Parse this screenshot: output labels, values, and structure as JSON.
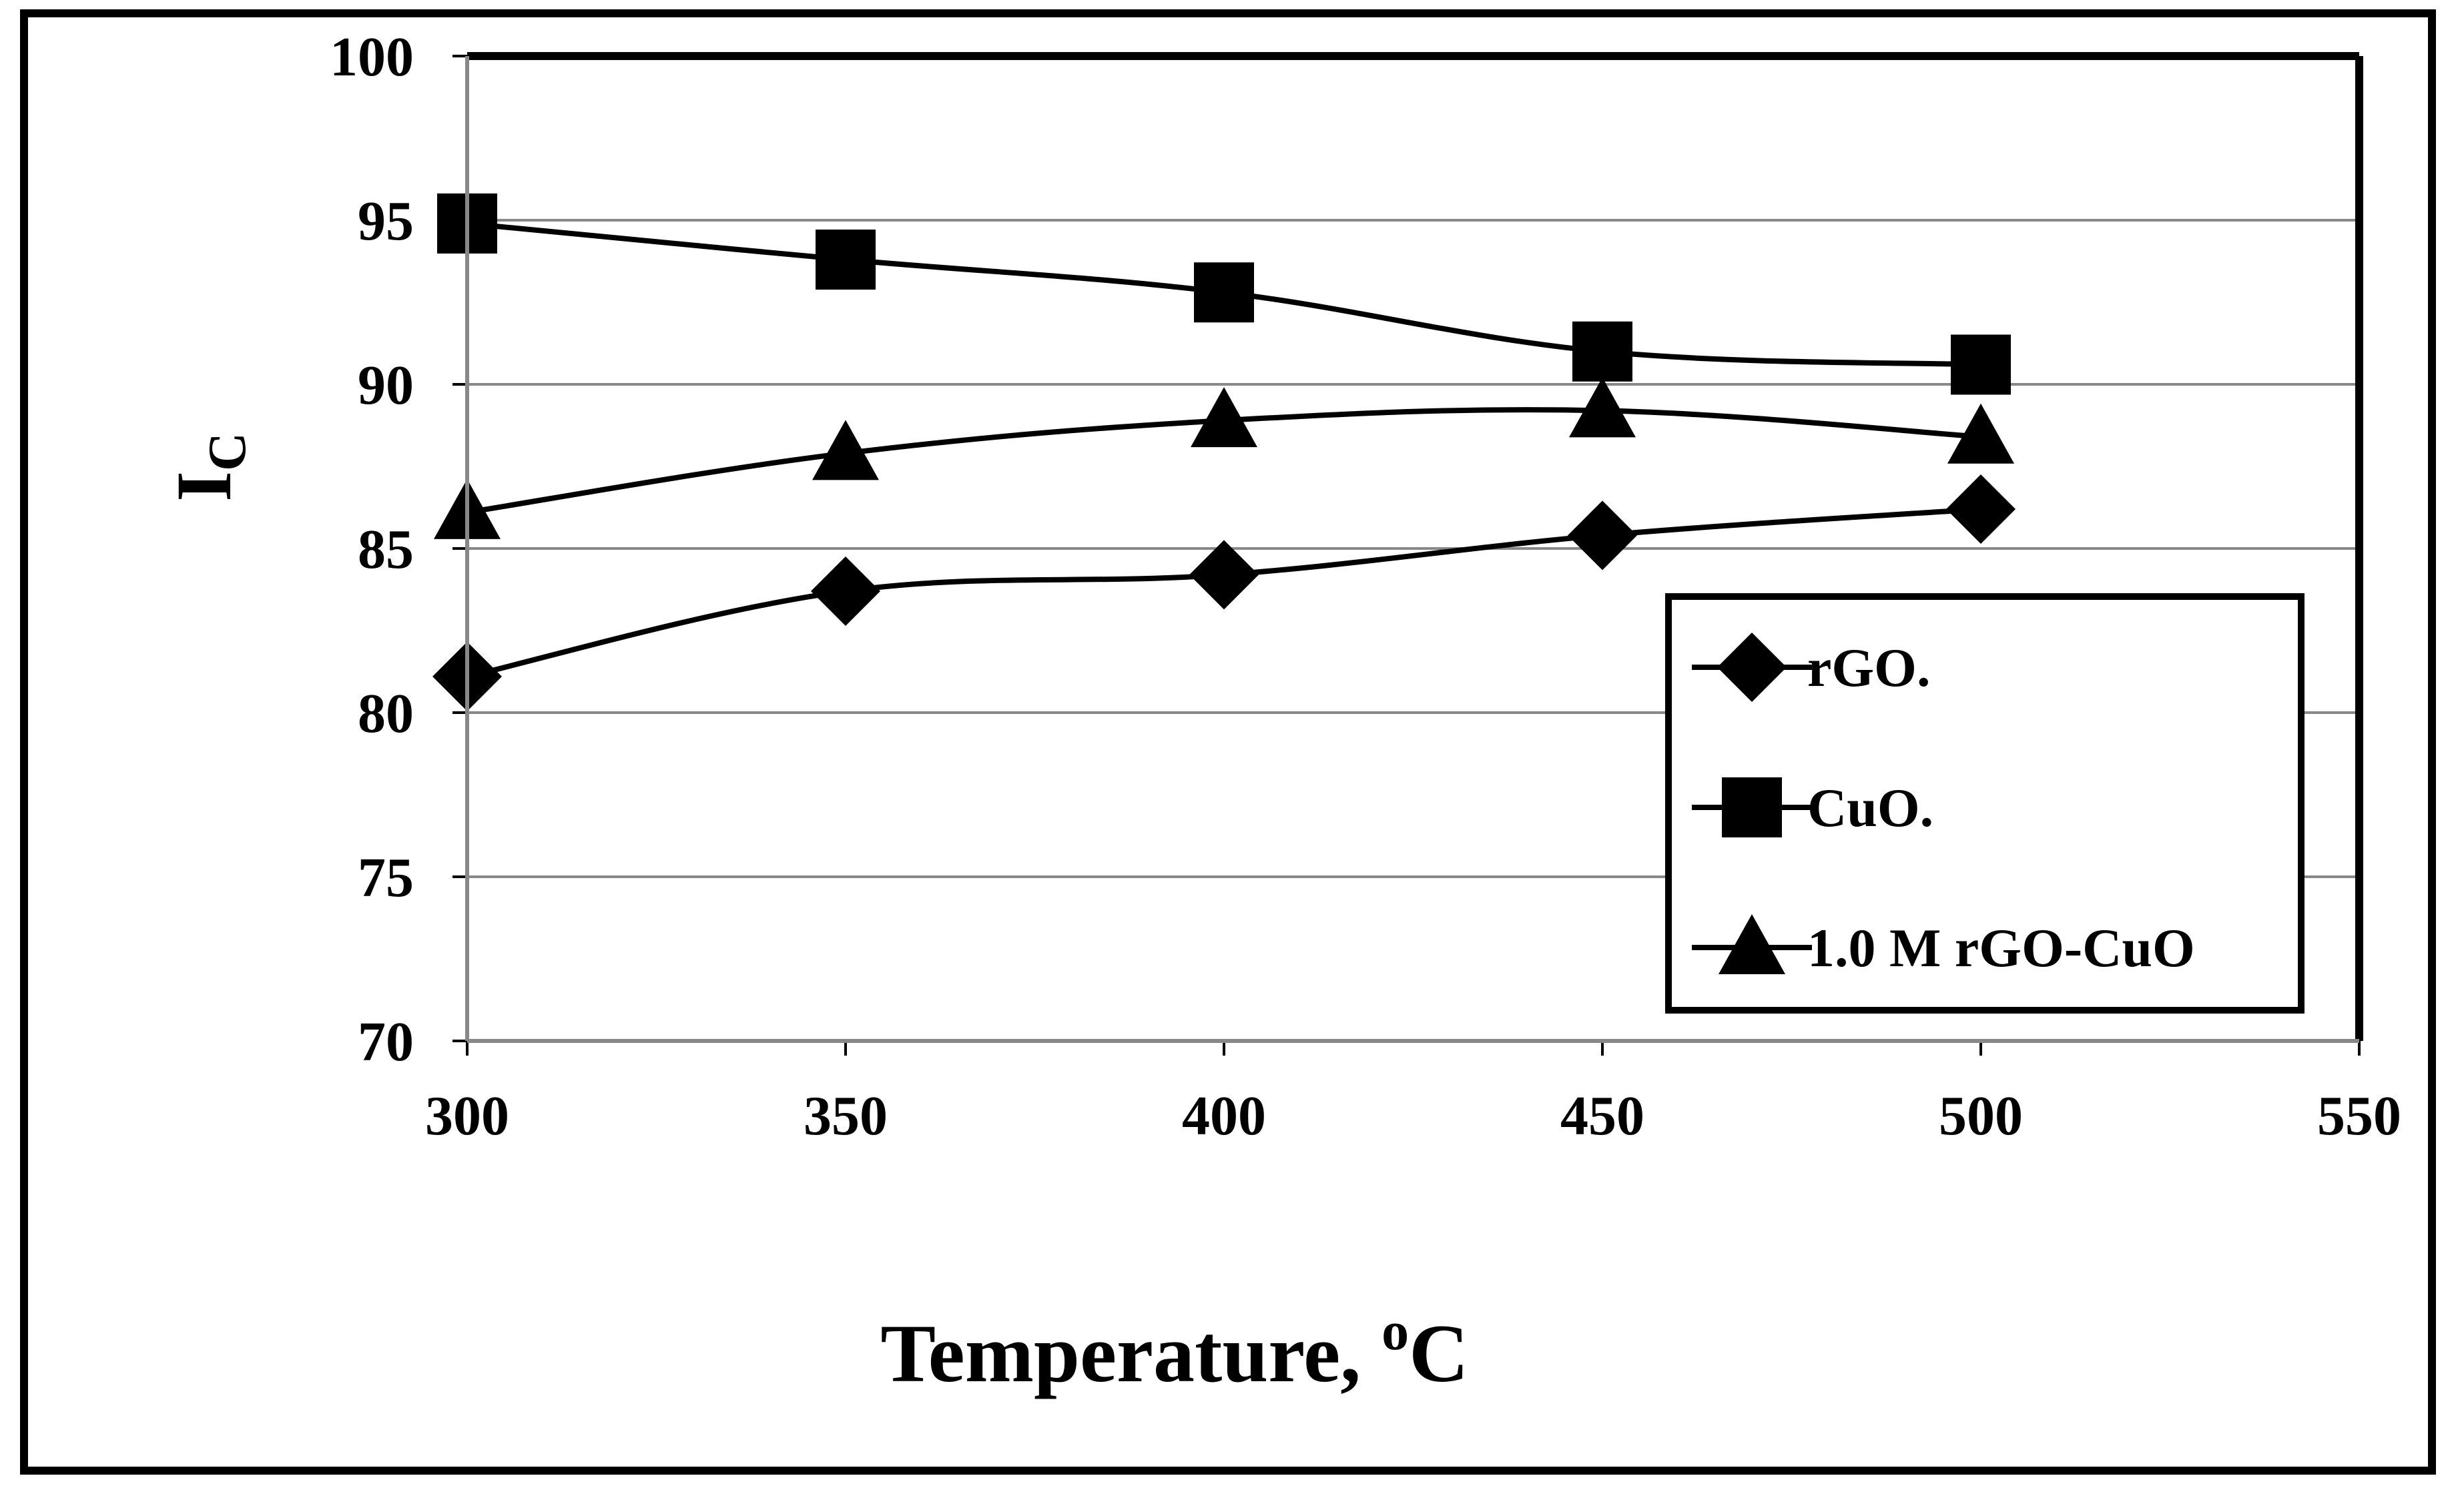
{
  "chart_data": {
    "type": "line",
    "title": "",
    "xlabel": "Temperature, ",
    "xlabel_superscript": "o",
    "xlabel_suffix": "C",
    "ylabel": "I",
    "ylabel_subscript": "C",
    "x": [
      300,
      350,
      400,
      450,
      500
    ],
    "xlim": [
      300,
      550
    ],
    "ylim": [
      70,
      100
    ],
    "xticks": [
      "300",
      "350",
      "400",
      "450",
      "500",
      "550"
    ],
    "yticks": [
      "70",
      "75",
      "80",
      "85",
      "90",
      "95",
      "100"
    ],
    "grid": true,
    "legend_position": "bottom-right",
    "series": [
      {
        "name": "rGO.",
        "marker": "diamond",
        "values": [
          81.1,
          83.7,
          84.2,
          85.4,
          86.2
        ]
      },
      {
        "name": "CuO.",
        "marker": "square",
        "values": [
          94.9,
          93.8,
          92.8,
          91.0,
          90.6
        ]
      },
      {
        "name": "1.0 M rGO-CuO",
        "marker": "triangle",
        "values": [
          86.1,
          87.9,
          88.9,
          89.2,
          88.4
        ]
      }
    ],
    "colors": {
      "line": "#000000",
      "grid": "#888888",
      "background": "#ffffff"
    }
  }
}
